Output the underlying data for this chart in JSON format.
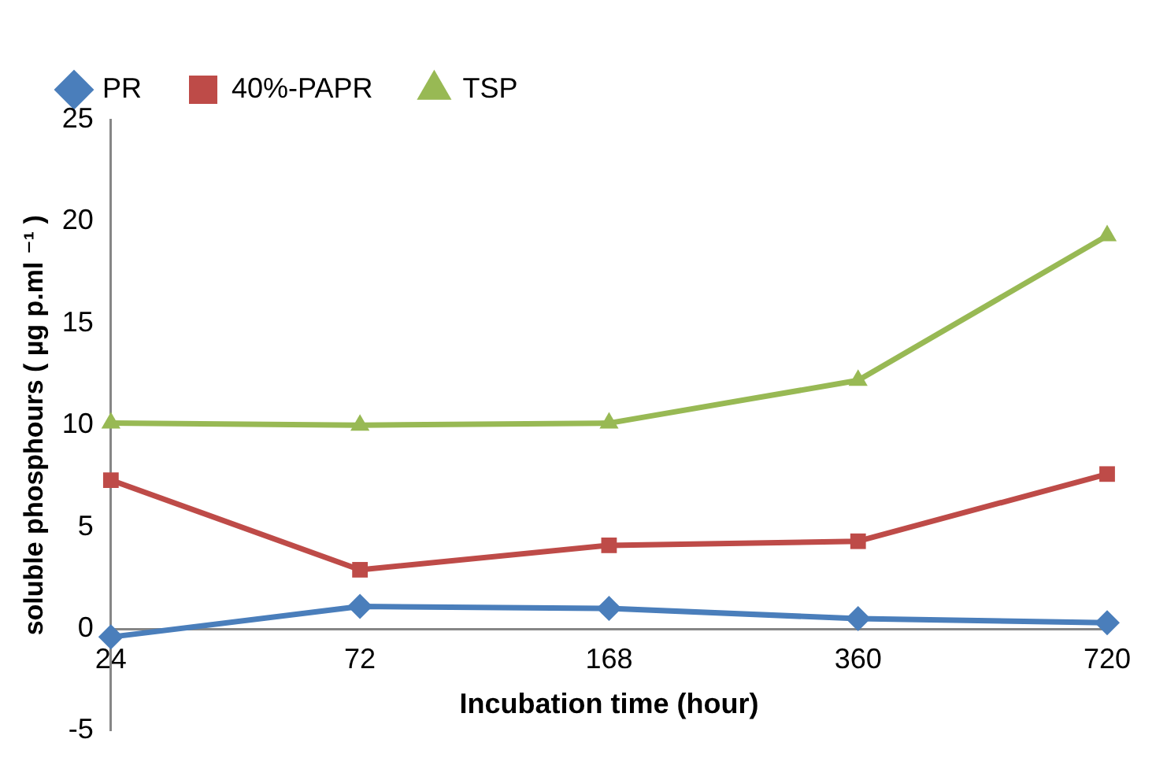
{
  "chart_data": {
    "type": "line",
    "xlabel": "Incubation time (hour)",
    "ylabel": "soluble phosphours ( µg p.ml ⁻¹ )",
    "categories": [
      "24",
      "72",
      "168",
      "360",
      "720"
    ],
    "series": [
      {
        "name": "PR",
        "color": "#4a7ebb",
        "marker": "diamond",
        "values": [
          -0.4,
          1.1,
          1.0,
          0.5,
          0.3
        ]
      },
      {
        "name": "40%-PAPR",
        "color": "#be4b48",
        "marker": "square",
        "values": [
          7.3,
          2.9,
          4.1,
          4.3,
          7.6
        ]
      },
      {
        "name": "TSP",
        "color": "#98b954",
        "marker": "triangle",
        "values": [
          10.1,
          10.0,
          10.1,
          12.2,
          19.3
        ]
      }
    ],
    "ylim": [
      -5,
      25
    ],
    "yticks": [
      -5,
      0,
      5,
      10,
      15,
      20,
      25
    ],
    "grid": false,
    "legend": "top"
  }
}
